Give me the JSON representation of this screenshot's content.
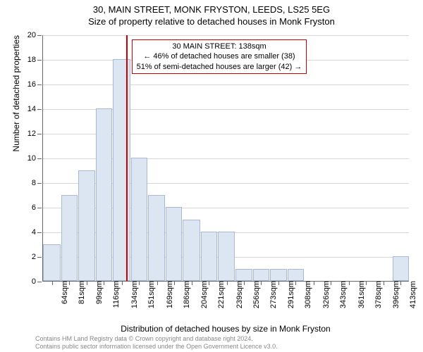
{
  "title": {
    "line1": "30, MAIN STREET, MONK FRYSTON, LEEDS, LS25 5EG",
    "line2": "Size of property relative to detached houses in Monk Fryston"
  },
  "chart": {
    "type": "histogram",
    "background_color": "#ffffff",
    "grid_color": "#d6d6d6",
    "axis_color": "#666666",
    "bar_fill": "#dce5f2",
    "bar_border": "#a9b9d1",
    "marker_color": "#cc0000",
    "xlim": [
      55,
      422
    ],
    "ylim": [
      0,
      20
    ],
    "ytick_step": 2,
    "ylabel": "Number of detached properties",
    "xlabel": "Distribution of detached houses by size in Monk Fryston",
    "label_fontsize": 12,
    "tick_fontsize": 11,
    "xtick_labels": [
      "64sqm",
      "81sqm",
      "99sqm",
      "116sqm",
      "134sqm",
      "151sqm",
      "169sqm",
      "186sqm",
      "204sqm",
      "221sqm",
      "239sqm",
      "256sqm",
      "273sqm",
      "291sqm",
      "308sqm",
      "326sqm",
      "343sqm",
      "361sqm",
      "378sqm",
      "396sqm",
      "413sqm"
    ],
    "xtick_values": [
      64,
      81,
      99,
      116,
      134,
      151,
      169,
      186,
      204,
      221,
      239,
      256,
      273,
      291,
      308,
      326,
      343,
      361,
      378,
      396,
      413
    ],
    "bars": [
      {
        "x0": 55,
        "x1": 73,
        "y": 3
      },
      {
        "x0": 73,
        "x1": 90,
        "y": 7
      },
      {
        "x0": 90,
        "x1": 108,
        "y": 9
      },
      {
        "x0": 108,
        "x1": 125,
        "y": 14
      },
      {
        "x0": 125,
        "x1": 143,
        "y": 18
      },
      {
        "x0": 143,
        "x1": 160,
        "y": 10
      },
      {
        "x0": 160,
        "x1": 178,
        "y": 7
      },
      {
        "x0": 178,
        "x1": 195,
        "y": 6
      },
      {
        "x0": 195,
        "x1": 213,
        "y": 5
      },
      {
        "x0": 213,
        "x1": 230,
        "y": 4
      },
      {
        "x0": 230,
        "x1": 248,
        "y": 4
      },
      {
        "x0": 248,
        "x1": 265,
        "y": 1
      },
      {
        "x0": 265,
        "x1": 282,
        "y": 1
      },
      {
        "x0": 282,
        "x1": 300,
        "y": 1
      },
      {
        "x0": 300,
        "x1": 317,
        "y": 1
      },
      {
        "x0": 405,
        "x1": 422,
        "y": 2
      }
    ],
    "marker_x": 138,
    "annotation": {
      "line1": "30 MAIN STREET: 138sqm",
      "line2": "← 46% of detached houses are smaller (38)",
      "line3": "51% of semi-detached houses are larger (42) →",
      "border_color": "#cc0000"
    }
  },
  "footer": {
    "line1": "Contains HM Land Registry data © Crown copyright and database right 2024.",
    "line2": "Contains public sector information licensed under the Open Government Licence v3.0.",
    "color": "#888888"
  }
}
